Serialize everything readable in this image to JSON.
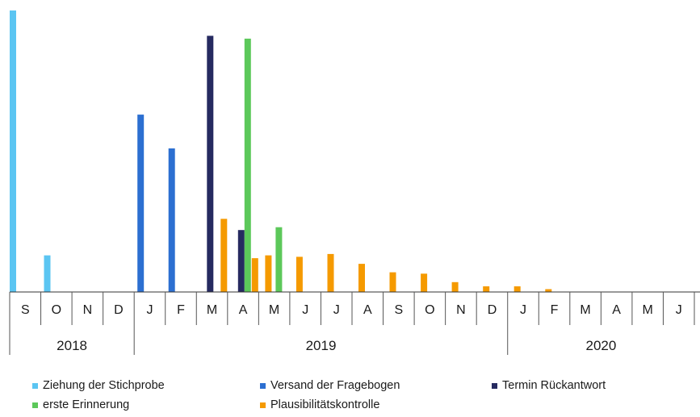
{
  "chart_data": {
    "type": "bar",
    "title": "",
    "xlabel": "",
    "ylabel": "",
    "ylim": [
      0,
      100
    ],
    "grid": false,
    "legend_position": "bottom",
    "categories": [
      "S",
      "O",
      "N",
      "D",
      "J",
      "F",
      "M",
      "A",
      "M",
      "J",
      "J",
      "A",
      "S",
      "O",
      "N",
      "D",
      "J",
      "F",
      "M",
      "A",
      "M",
      "J"
    ],
    "years": [
      {
        "label": "2018",
        "start": 0,
        "end": 4
      },
      {
        "label": "2019",
        "start": 4,
        "end": 16
      },
      {
        "label": "2020",
        "start": 16,
        "end": 22
      }
    ],
    "series": [
      {
        "name": "Ziehung der Stichprobe",
        "color": "#5bc5f2",
        "values": [
          100,
          13,
          0,
          0,
          0,
          0,
          0,
          0,
          0,
          0,
          0,
          0,
          0,
          0,
          0,
          0,
          0,
          0,
          0,
          0,
          0,
          0
        ]
      },
      {
        "name": "Versand der Fragebogen",
        "color": "#2c6fd1",
        "values": [
          0,
          0,
          0,
          0,
          63,
          51,
          0,
          0,
          0,
          0,
          0,
          0,
          0,
          0,
          0,
          0,
          0,
          0,
          0,
          0,
          0,
          0
        ]
      },
      {
        "name": "Termin Rückantwort",
        "color": "#262a60",
        "values": [
          0,
          0,
          0,
          0,
          0,
          0,
          91,
          22,
          0,
          0,
          0,
          0,
          0,
          0,
          0,
          0,
          0,
          0,
          0,
          0,
          0,
          0
        ]
      },
      {
        "name": "erste Erinnerung",
        "color": "#5cc85a",
        "values": [
          0,
          0,
          0,
          0,
          0,
          0,
          0,
          90,
          23,
          0,
          0,
          0,
          0,
          0,
          0,
          0,
          0,
          0,
          0,
          0,
          0,
          0
        ]
      },
      {
        "name": "Plausibilitätskontrolle",
        "color": "#f59a00",
        "values": [
          0,
          0,
          0,
          0,
          0,
          0,
          26,
          12,
          13,
          12.5,
          13.5,
          10,
          7,
          6.5,
          3.5,
          2,
          2,
          1,
          0,
          0,
          0,
          0
        ]
      }
    ]
  }
}
